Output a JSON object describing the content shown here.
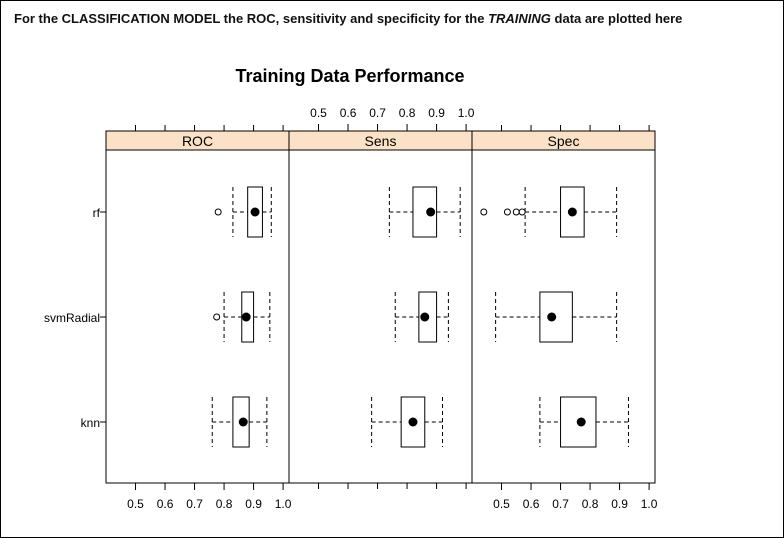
{
  "caption": {
    "prefix": "For the CLASSIFICATION MODEL the ROC, sensitivity and specificity for the ",
    "emph": "TRAINING",
    "suffix": " data are plotted here"
  },
  "chart_data": {
    "type": "boxplot",
    "title": "Training Data Performance",
    "models": [
      "rf",
      "svmRadial",
      "knn"
    ],
    "panel_color": "#FBE2C7",
    "xlim": [
      0.4,
      1.02
    ],
    "ticks": [
      0.5,
      0.6,
      0.7,
      0.8,
      0.9,
      1.0
    ],
    "tick_labels": [
      "0.5",
      "0.6",
      "0.7",
      "0.8",
      "0.9",
      "1.0"
    ],
    "panels": [
      {
        "name": "ROC",
        "axis": "bottom",
        "boxes": [
          {
            "model": "rf",
            "whisker_low": 0.83,
            "q1": 0.88,
            "median": 0.905,
            "q3": 0.93,
            "whisker_high": 0.96,
            "outliers": [
              0.78
            ]
          },
          {
            "model": "svmRadial",
            "whisker_low": 0.8,
            "q1": 0.86,
            "median": 0.875,
            "q3": 0.9,
            "whisker_high": 0.955,
            "outliers": [
              0.775
            ]
          },
          {
            "model": "knn",
            "whisker_low": 0.76,
            "q1": 0.83,
            "median": 0.865,
            "q3": 0.885,
            "whisker_high": 0.945,
            "outliers": []
          }
        ]
      },
      {
        "name": "Sens",
        "axis": "top",
        "boxes": [
          {
            "model": "rf",
            "whisker_low": 0.74,
            "q1": 0.82,
            "median": 0.88,
            "q3": 0.9,
            "whisker_high": 0.98,
            "outliers": []
          },
          {
            "model": "svmRadial",
            "whisker_low": 0.76,
            "q1": 0.84,
            "median": 0.86,
            "q3": 0.9,
            "whisker_high": 0.94,
            "outliers": []
          },
          {
            "model": "knn",
            "whisker_low": 0.68,
            "q1": 0.78,
            "median": 0.82,
            "q3": 0.86,
            "whisker_high": 0.92,
            "outliers": []
          }
        ]
      },
      {
        "name": "Spec",
        "axis": "bottom",
        "boxes": [
          {
            "model": "rf",
            "whisker_low": 0.58,
            "q1": 0.7,
            "median": 0.74,
            "q3": 0.78,
            "whisker_high": 0.89,
            "outliers": [
              0.44,
              0.52,
              0.55,
              0.57
            ]
          },
          {
            "model": "svmRadial",
            "whisker_low": 0.48,
            "q1": 0.63,
            "median": 0.67,
            "q3": 0.74,
            "whisker_high": 0.89,
            "outliers": []
          },
          {
            "model": "knn",
            "whisker_low": 0.63,
            "q1": 0.7,
            "median": 0.77,
            "q3": 0.82,
            "whisker_high": 0.93,
            "outliers": []
          }
        ]
      }
    ]
  }
}
